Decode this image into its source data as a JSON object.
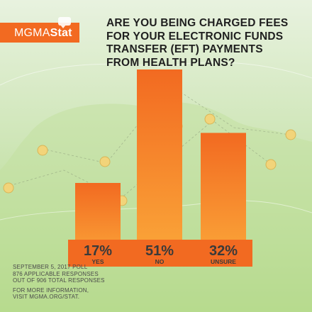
{
  "brand": {
    "logo_main": "MGMA",
    "logo_bold": "Stat"
  },
  "title_lines": [
    "ARE YOU BEING CHARGED FEES",
    "FOR YOUR ELECTRONIC FUNDS",
    "TRANSFER (EFT) PAYMENTS",
    "FROM HEALTH PLANS?"
  ],
  "colors": {
    "accent": "#f26a21",
    "bar_top": "#f26a21",
    "bar_bottom": "#fba93a",
    "dark_text": "#3a3a3a"
  },
  "chart_data": {
    "type": "bar",
    "categories": [
      "YES",
      "NO",
      "UNSURE"
    ],
    "values": [
      17,
      51,
      32
    ],
    "value_labels": [
      "17%",
      "51%",
      "32%"
    ],
    "title": "ARE YOU BEING CHARGED FEES FOR YOUR ELECTRONIC FUNDS TRANSFER (EFT) PAYMENTS FROM HEALTH PLANS?",
    "xlabel": "",
    "ylabel": "",
    "ylim": [
      0,
      51
    ],
    "grid": false
  },
  "footnote": {
    "lines_a": [
      "SEPTEMBER 5, 2017 POLL",
      "876 APPLICABLE RESPONSES",
      "OUT OF 906 TOTAL RESPONSES"
    ],
    "lines_b": [
      "FOR MORE INFORMATION,",
      "VISIT MGMA.ORG/STAT."
    ]
  }
}
